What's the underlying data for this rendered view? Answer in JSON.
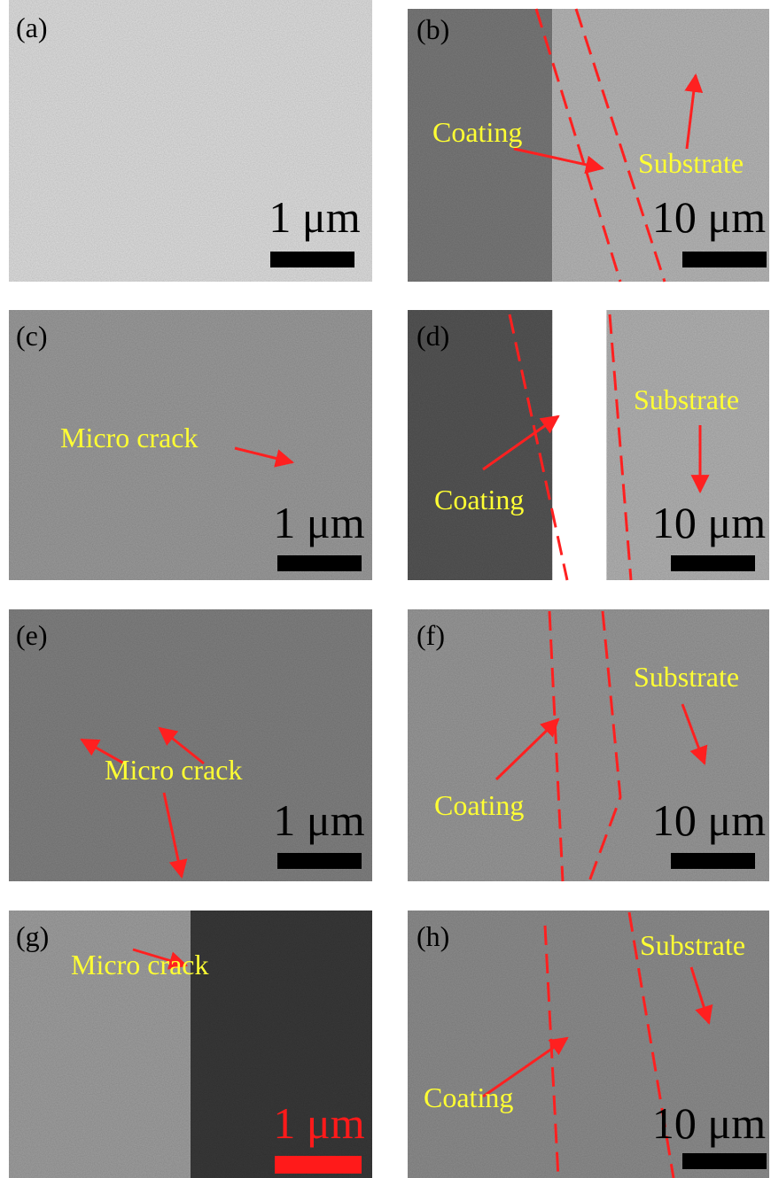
{
  "panels": [
    {
      "label": "(a)",
      "scale": "1 μm",
      "annotations": []
    },
    {
      "label": "(b)",
      "scale": "10 μm",
      "annotations": [
        "Coating",
        "Substrate"
      ]
    },
    {
      "label": "(c)",
      "scale": "1 μm",
      "annotations": [
        "Micro crack"
      ]
    },
    {
      "label": "(d)",
      "scale": "10 μm",
      "annotations": [
        "Substrate",
        "Coating"
      ]
    },
    {
      "label": "(e)",
      "scale": "1 μm",
      "annotations": [
        "Micro crack"
      ]
    },
    {
      "label": "(f)",
      "scale": "10 μm",
      "annotations": [
        "Substrate",
        "Coating"
      ]
    },
    {
      "label": "(g)",
      "scale": "1 μm",
      "annotations": [
        "Micro crack"
      ]
    },
    {
      "label": "(h)",
      "scale": "10 μm",
      "annotations": [
        "Substrate",
        "Coating"
      ]
    }
  ]
}
